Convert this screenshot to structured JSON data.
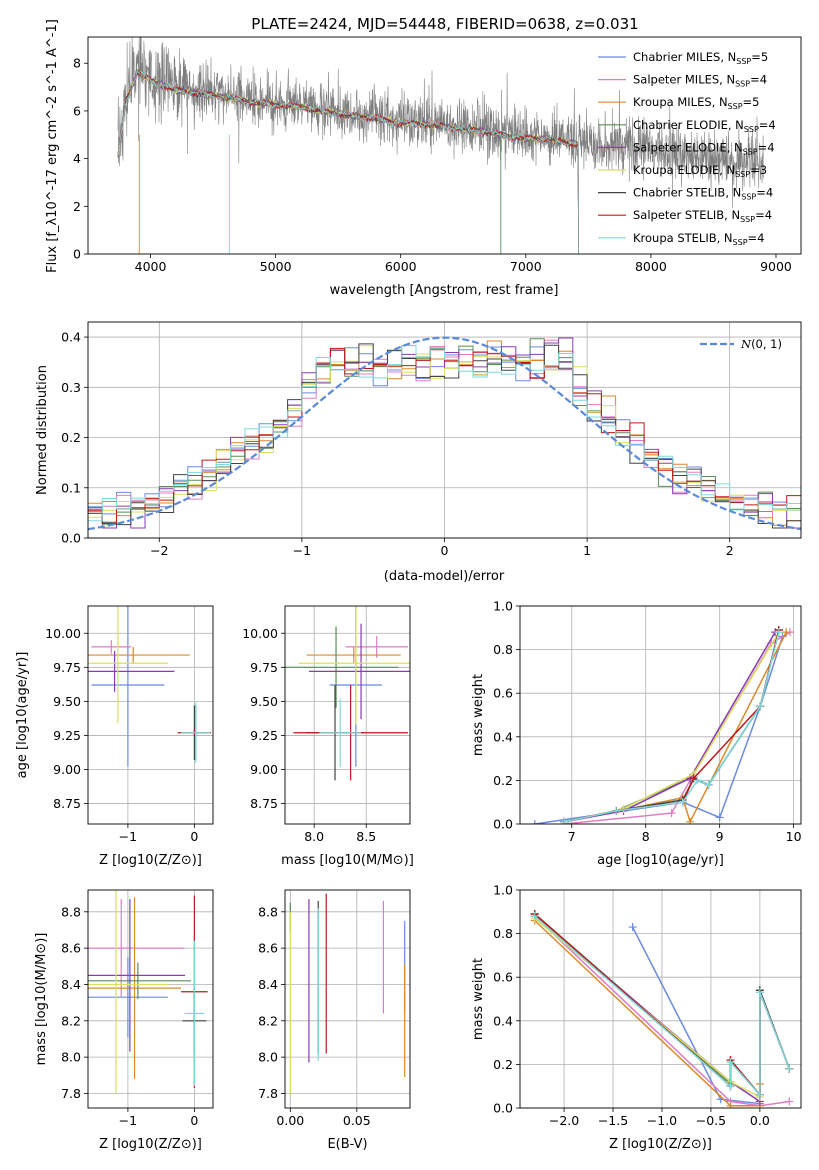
{
  "figure": {
    "title": "PLATE=2424, MJD=54448, FIBERID=0638, z=0.031"
  },
  "colors": {
    "chabrier_miles": "#6a8be0",
    "salpeter_miles": "#e07cc4",
    "kroupa_miles": "#d98a2c",
    "chabrier_elodie": "#5a8c5a",
    "salpeter_elodie": "#8a3cb0",
    "kroupa_elodie": "#d8e060",
    "chabrier_stelib": "#444444",
    "salpeter_stelib": "#c01818",
    "kroupa_stelib": "#7fd8dc",
    "data": "#808080",
    "gauss": "#5b8ad8"
  },
  "models": [
    {
      "name": "Chabrier MILES, N$_{SSP}$=5",
      "label": "Chabrier MILES, N",
      "nssp": "=5",
      "key": "chabrier_miles"
    },
    {
      "name": "Salpeter MILES, N$_{SSP}$=4",
      "label": "Salpeter MILES, N",
      "nssp": "=4",
      "key": "salpeter_miles"
    },
    {
      "name": "Kroupa MILES, N$_{SSP}$=5",
      "label": "Kroupa MILES, N",
      "nssp": "=5",
      "key": "kroupa_miles"
    },
    {
      "name": "Chabrier ELODIE, N$_{SSP}$=4",
      "label": "Chabrier ELODIE, N",
      "nssp": "=4",
      "key": "chabrier_elodie"
    },
    {
      "name": "Salpeter ELODIE, N$_{SSP}$=4",
      "label": "Salpeter ELODIE, N",
      "nssp": "=4",
      "key": "salpeter_elodie"
    },
    {
      "name": "Kroupa ELODIE, N$_{SSP}$=3",
      "label": "Kroupa ELODIE, N",
      "nssp": "=3",
      "key": "kroupa_elodie"
    },
    {
      "name": "Chabrier STELIB, N$_{SSP}$=4",
      "label": "Chabrier STELIB, N",
      "nssp": "=4",
      "key": "chabrier_stelib"
    },
    {
      "name": "Salpeter STELIB, N$_{SSP}$=4",
      "label": "Salpeter STELIB, N",
      "nssp": "=4",
      "key": "salpeter_stelib"
    },
    {
      "name": "Kroupa STELIB, N$_{SSP}$=4",
      "label": "Kroupa STELIB, N",
      "nssp": "=4",
      "key": "kroupa_stelib"
    }
  ],
  "chart_data": [
    {
      "id": "spectrum",
      "type": "line",
      "title": "PLATE=2424, MJD=54448, FIBERID=0638, z=0.031",
      "xlabel": "wavelength [Angstrom, rest frame]",
      "ylabel": "Flux [f_λ10^-17 erg cm^-2 s^-1 A^-1]",
      "xlim": [
        3500,
        9200
      ],
      "ylim": [
        0,
        9.1
      ],
      "xticks": [
        4000,
        5000,
        6000,
        7000,
        8000,
        9000
      ],
      "yticks": [
        0,
        2,
        4,
        6,
        8
      ],
      "legend_loc": "top-right",
      "data_envelope": {
        "x": [
          3740,
          3800,
          3900,
          4000,
          4200,
          4500,
          4800,
          5000,
          5200,
          5500,
          5800,
          6000,
          6300,
          6600,
          6900,
          7200,
          7400,
          7600,
          7800,
          8000,
          8300,
          8600,
          8900
        ],
        "y": [
          4.2,
          6.5,
          7.8,
          7.4,
          7.0,
          6.8,
          6.5,
          6.4,
          6.3,
          6.0,
          5.8,
          5.6,
          5.5,
          5.3,
          5.0,
          4.9,
          4.7,
          4.6,
          4.5,
          4.4,
          4.1,
          3.9,
          3.8
        ]
      },
      "model_truncation_x": 7420
    },
    {
      "id": "residuals",
      "type": "histogram",
      "xlabel": "(data-model)/error",
      "ylabel": "Normed distribution",
      "xlim": [
        -2.5,
        2.5
      ],
      "ylim": [
        0,
        0.43
      ],
      "xticks": [
        -2,
        -1,
        0,
        1,
        2
      ],
      "yticks": [
        0.0,
        0.1,
        0.2,
        0.3,
        0.4
      ],
      "reference": {
        "label": "$\\mathcal{N}(0,1)$",
        "text": "(0, 1)",
        "mu": 0,
        "sigma": 1
      },
      "legend_loc": "top-right",
      "bin_width": 0.1
    },
    {
      "id": "age_vs_Z",
      "type": "scatter",
      "xlabel": "Z [log10(Z/Z⊙)]",
      "ylabel": "age [log10(age/yr)]",
      "xlim": [
        -1.6,
        0.28
      ],
      "ylim": [
        8.6,
        10.2
      ],
      "xticks": [
        -1,
        0
      ],
      "yticks": [
        8.75,
        9.0,
        9.25,
        9.5,
        9.75,
        10.0
      ],
      "points": [
        {
          "model": "chabrier_miles",
          "x": -1.0,
          "xerr": 0.55,
          "y": 9.62,
          "yerr": 0.6
        },
        {
          "model": "salpeter_miles",
          "x": -1.25,
          "xerr": 0.3,
          "y": 9.9,
          "yerr": 0.05
        },
        {
          "model": "kroupa_miles",
          "x": -0.92,
          "xerr": 0.85,
          "y": 9.84,
          "yerr": 0.06
        },
        {
          "model": "chabrier_elodie",
          "x": 0.02,
          "xerr": 0.12,
          "y": 9.27,
          "yerr": 0.2
        },
        {
          "model": "salpeter_elodie",
          "x": -1.2,
          "xerr": 0.9,
          "y": 9.72,
          "yerr": 0.15
        },
        {
          "model": "kroupa_elodie",
          "x": -1.15,
          "xerr": 0.75,
          "y": 9.78,
          "yerr": 0.44
        },
        {
          "model": "chabrier_stelib",
          "x": 0.0,
          "xerr": 0.2,
          "y": 9.27,
          "yerr": 0.2
        },
        {
          "model": "salpeter_stelib",
          "x": 0.0,
          "xerr": 0.25,
          "y": 9.27,
          "yerr": 0.02
        },
        {
          "model": "kroupa_stelib",
          "x": 0.02,
          "xerr": 0.22,
          "y": 9.27,
          "yerr": 0.22
        }
      ]
    },
    {
      "id": "age_vs_mass",
      "type": "scatter",
      "xlabel": "mass [log10(M/M⊙)]",
      "ylabel": "",
      "xlim": [
        7.72,
        8.92
      ],
      "ylim": [
        8.6,
        10.2
      ],
      "xticks": [
        8.0,
        8.5
      ],
      "yticks": [
        8.75,
        9.0,
        9.25,
        9.5,
        9.75,
        10.0
      ],
      "points": [
        {
          "model": "chabrier_miles",
          "x": 8.4,
          "xerr": 0.25,
          "y": 9.62,
          "yerr": 0.6
        },
        {
          "model": "salpeter_miles",
          "x": 8.6,
          "xerr": 0.3,
          "y": 9.9,
          "yerr": 0.08
        },
        {
          "model": "kroupa_miles",
          "x": 8.38,
          "xerr": 0.45,
          "y": 9.84,
          "yerr": 0.06
        },
        {
          "model": "chabrier_elodie",
          "x": 8.21,
          "xerr": 0.6,
          "y": 9.75,
          "yerr": 0.3
        },
        {
          "model": "salpeter_elodie",
          "x": 8.45,
          "xerr": 0.5,
          "y": 9.72,
          "yerr": 0.35
        },
        {
          "model": "kroupa_elodie",
          "x": 8.4,
          "xerr": 0.55,
          "y": 9.78,
          "yerr": 0.45
        },
        {
          "model": "chabrier_stelib",
          "x": 8.2,
          "xerr": 0.28,
          "y": 9.27,
          "yerr": 0.35
        },
        {
          "model": "salpeter_stelib",
          "x": 8.35,
          "xerr": 0.55,
          "y": 9.27,
          "yerr": 0.35
        },
        {
          "model": "kroupa_stelib",
          "x": 8.25,
          "xerr": 0.2,
          "y": 9.27,
          "yerr": 0.25
        }
      ]
    },
    {
      "id": "weight_vs_age",
      "type": "line",
      "xlabel": "age [log10(age/yr)]",
      "ylabel": "mass weight",
      "xlim": [
        6.3,
        10.1
      ],
      "ylim": [
        0,
        1
      ],
      "xticks": [
        7,
        8,
        9,
        10
      ],
      "yticks": [
        0.0,
        0.2,
        0.4,
        0.6,
        0.8,
        1.0
      ],
      "series": [
        {
          "model": "chabrier_miles",
          "x": [
            6.5,
            8.5,
            9.0,
            9.55,
            9.85
          ],
          "y": [
            0.0,
            0.1,
            0.03,
            0.54,
            0.86
          ]
        },
        {
          "model": "salpeter_miles",
          "x": [
            6.9,
            8.35,
            8.6,
            9.7,
            9.95
          ],
          "y": [
            0.0,
            0.05,
            0.2,
            0.83,
            0.88
          ]
        },
        {
          "model": "kroupa_miles",
          "x": [
            6.9,
            8.5,
            8.6,
            9.9
          ],
          "y": [
            0.01,
            0.12,
            0.01,
            0.88
          ]
        },
        {
          "model": "chabrier_elodie",
          "x": [
            6.9,
            7.6,
            8.6,
            8.85,
            9.55,
            9.8
          ],
          "y": [
            0.01,
            0.06,
            0.21,
            0.18,
            0.54,
            0.89
          ]
        },
        {
          "model": "salpeter_elodie",
          "x": [
            6.9,
            7.7,
            8.6,
            9.75
          ],
          "y": [
            0.01,
            0.06,
            0.21,
            0.88
          ]
        },
        {
          "model": "kroupa_elodie",
          "x": [
            6.9,
            7.7,
            8.65,
            9.8
          ],
          "y": [
            0.01,
            0.07,
            0.23,
            0.88
          ]
        },
        {
          "model": "chabrier_stelib",
          "x": [
            6.9,
            7.6,
            8.5,
            8.65,
            8.85,
            9.55,
            9.8
          ],
          "y": [
            0.01,
            0.06,
            0.11,
            0.21,
            0.18,
            0.54,
            0.89
          ]
        },
        {
          "model": "salpeter_stelib",
          "x": [
            6.9,
            7.6,
            8.5,
            8.65,
            9.55,
            9.8
          ],
          "y": [
            0.01,
            0.06,
            0.1,
            0.21,
            0.54,
            0.89
          ]
        },
        {
          "model": "kroupa_stelib",
          "x": [
            6.9,
            7.6,
            8.5,
            8.7,
            8.85,
            9.55,
            9.8
          ],
          "y": [
            0.01,
            0.06,
            0.1,
            0.2,
            0.18,
            0.54,
            0.88
          ]
        }
      ]
    },
    {
      "id": "mass_vs_Z",
      "type": "scatter",
      "xlabel": "Z [log10(Z/Z⊙)]",
      "ylabel": "mass [log10(M/M⊙)]",
      "xlim": [
        -1.6,
        0.28
      ],
      "ylim": [
        7.72,
        8.92
      ],
      "xticks": [
        -1,
        0
      ],
      "yticks": [
        7.8,
        8.0,
        8.2,
        8.4,
        8.6,
        8.8
      ],
      "points": [
        {
          "model": "chabrier_miles",
          "x": -1.0,
          "xerr": 0.6,
          "y": 8.33,
          "yerr": 0.22
        },
        {
          "model": "salpeter_miles",
          "x": -1.1,
          "xerr": 0.95,
          "y": 8.6,
          "yerr": 0.27
        },
        {
          "model": "kroupa_miles",
          "x": -0.9,
          "xerr": 0.7,
          "y": 8.38,
          "yerr": 0.5
        },
        {
          "model": "chabrier_elodie",
          "x": -0.85,
          "xerr": 0.8,
          "y": 8.42,
          "yerr": 0.1
        },
        {
          "model": "salpeter_elodie",
          "x": -0.97,
          "xerr": 0.83,
          "y": 8.45,
          "yerr": 0.42
        },
        {
          "model": "kroupa_elodie",
          "x": -1.18,
          "xerr": 0.8,
          "y": 8.4,
          "yerr": 0.6
        },
        {
          "model": "chabrier_stelib",
          "x": 0.0,
          "xerr": 0.18,
          "y": 8.2,
          "yerr": 0.18
        },
        {
          "model": "salpeter_stelib",
          "x": 0.0,
          "xerr": 0.2,
          "y": 8.36,
          "yerr": 0.53
        },
        {
          "model": "kroupa_stelib",
          "x": 0.0,
          "xerr": 0.15,
          "y": 8.24,
          "yerr": 0.4
        }
      ]
    },
    {
      "id": "mass_vs_ebv",
      "type": "scatter",
      "xlabel": "E(B-V)",
      "ylabel": "",
      "xlim": [
        -0.004,
        0.09
      ],
      "ylim": [
        7.72,
        8.92
      ],
      "xticks": [
        0.0,
        0.05
      ],
      "yticks": [
        7.8,
        8.0,
        8.2,
        8.4,
        8.6,
        8.8
      ],
      "points": [
        {
          "model": "chabrier_miles",
          "x": 0.086,
          "xerr": 0,
          "y": 8.5,
          "yerr": 0.25
        },
        {
          "model": "salpeter_miles",
          "x": 0.07,
          "xerr": 0,
          "y": 8.55,
          "yerr": 0.31
        },
        {
          "model": "kroupa_miles",
          "x": 0.086,
          "xerr": 0,
          "y": 8.2,
          "yerr": 0.31
        },
        {
          "model": "chabrier_elodie",
          "x": 0.0,
          "xerr": 0,
          "y": 8.77,
          "yerr": 0.08
        },
        {
          "model": "salpeter_elodie",
          "x": 0.014,
          "xerr": 0,
          "y": 8.42,
          "yerr": 0.45
        },
        {
          "model": "kroupa_elodie",
          "x": 0.0,
          "xerr": 0,
          "y": 8.3,
          "yerr": 0.5
        },
        {
          "model": "chabrier_stelib",
          "x": 0.021,
          "xerr": 0,
          "y": 8.44,
          "yerr": 0.42
        },
        {
          "model": "salpeter_stelib",
          "x": 0.027,
          "xerr": 0,
          "y": 8.46,
          "yerr": 0.44
        },
        {
          "model": "kroupa_stelib",
          "x": 0.021,
          "xerr": 0,
          "y": 8.4,
          "yerr": 0.42
        }
      ]
    },
    {
      "id": "weight_vs_Z",
      "type": "line",
      "xlabel": "Z [log10(Z/Z⊙)]",
      "ylabel": "mass weight",
      "xlim": [
        -2.45,
        0.42
      ],
      "ylim": [
        0,
        1
      ],
      "xticks": [
        -2.0,
        -1.5,
        -1.0,
        -0.5,
        0.0
      ],
      "yticks": [
        0.0,
        0.2,
        0.4,
        0.6,
        0.8,
        1.0
      ],
      "series": [
        {
          "model": "chabrier_miles",
          "x": [
            -1.3,
            -0.4,
            0.0,
            0.0
          ],
          "y": [
            0.83,
            0.04,
            0.02,
            0.54
          ]
        },
        {
          "model": "salpeter_miles",
          "x": [
            -2.3,
            -0.3,
            0.0,
            0.3
          ],
          "y": [
            0.88,
            0.03,
            0.01,
            0.03
          ]
        },
        {
          "model": "kroupa_miles",
          "x": [
            -2.3,
            -0.3,
            0.0,
            0.0
          ],
          "y": [
            0.86,
            0.01,
            0.01,
            0.11
          ]
        },
        {
          "model": "chabrier_elodie",
          "x": [
            -2.3,
            -0.3,
            -0.3,
            0.0,
            0.0,
            0.3
          ],
          "y": [
            0.89,
            0.11,
            0.22,
            0.06,
            0.54,
            0.18
          ]
        },
        {
          "model": "salpeter_elodie",
          "x": [
            -2.3,
            -0.3,
            0.0
          ],
          "y": [
            0.88,
            0.12,
            0.03
          ]
        },
        {
          "model": "kroupa_elodie",
          "x": [
            -2.3,
            -0.3,
            0.0
          ],
          "y": [
            0.87,
            0.12,
            0.05
          ]
        },
        {
          "model": "chabrier_stelib",
          "x": [
            -2.3,
            -0.3,
            -0.3,
            0.0,
            0.0,
            0.3
          ],
          "y": [
            0.89,
            0.1,
            0.22,
            0.06,
            0.54,
            0.18
          ]
        },
        {
          "model": "salpeter_stelib",
          "x": [
            -2.3,
            -0.3,
            -0.3,
            0.0,
            0.0,
            0.3
          ],
          "y": [
            0.89,
            0.1,
            0.22,
            0.06,
            0.53,
            0.18
          ]
        },
        {
          "model": "kroupa_stelib",
          "x": [
            -2.3,
            -0.3,
            -0.3,
            0.0,
            0.0,
            0.3
          ],
          "y": [
            0.88,
            0.1,
            0.21,
            0.06,
            0.53,
            0.18
          ]
        }
      ]
    }
  ]
}
